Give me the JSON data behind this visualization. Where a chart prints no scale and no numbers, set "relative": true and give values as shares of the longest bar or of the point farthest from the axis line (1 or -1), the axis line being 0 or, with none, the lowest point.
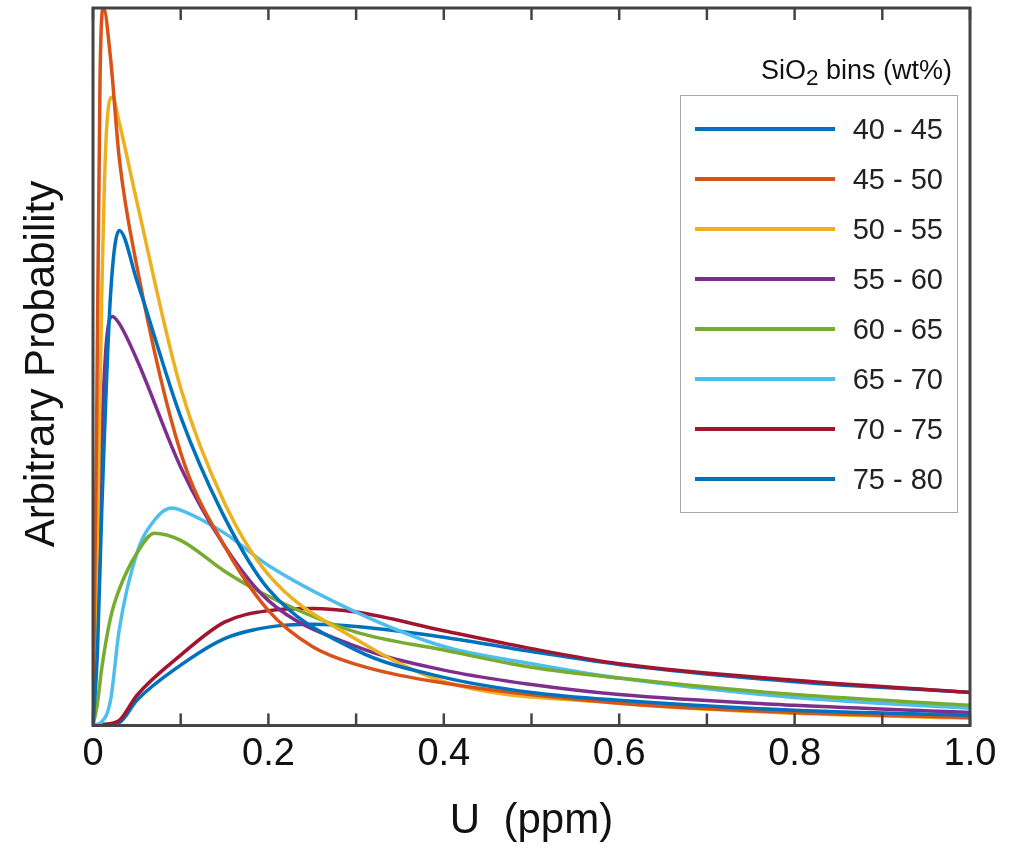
{
  "chart_data": {
    "type": "line",
    "xlabel": "U  (ppm)",
    "ylabel": "Arbitrary Probability",
    "legend_title": "SiO$_{2}$ bins (wt%)",
    "legend": "top right",
    "relative": true,
    "grid": false,
    "marker": "none",
    "line_style": "solid",
    "xlim": [
      0,
      1
    ],
    "xticks": [
      0,
      {
        "value": 0.1,
        "label": null
      },
      0.2,
      {
        "value": 0.3,
        "label": null
      },
      0.4,
      {
        "value": 0.5,
        "label": null
      },
      0.6,
      {
        "value": 0.7,
        "label": null
      },
      0.8,
      {
        "value": 0.9,
        "label": null
      },
      {
        "value": 1,
        "label": "1.0"
      }
    ],
    "series": [
      {
        "name": "40 - 45",
        "color": "#0072bd",
        "x": [
          0,
          0.005,
          0.01,
          0.02,
          0.03,
          0.05,
          0.1,
          0.15,
          0.2,
          0.3,
          0.4,
          0.5,
          0.6,
          0.8,
          1.0
        ],
        "values": [
          0,
          0.1,
          0.3,
          0.6,
          0.69,
          0.62,
          0.43,
          0.29,
          0.19,
          0.105,
          0.067,
          0.046,
          0.035,
          0.021,
          0.014
        ]
      },
      {
        "name": "45 - 50",
        "color": "#d95319",
        "x": [
          0,
          0.004,
          0.008,
          0.012,
          0.02,
          0.03,
          0.05,
          0.1,
          0.15,
          0.2,
          0.25,
          0.3,
          0.4,
          0.6,
          0.8,
          1.0
        ],
        "values": [
          0,
          0.4,
          0.9,
          1,
          0.93,
          0.79,
          0.64,
          0.38,
          0.25,
          0.16,
          0.11,
          0.085,
          0.059,
          0.031,
          0.018,
          0.011
        ]
      },
      {
        "name": "50 - 55",
        "color": "#edb120",
        "x": [
          0,
          0.005,
          0.01,
          0.015,
          0.022,
          0.03,
          0.05,
          0.1,
          0.15,
          0.2,
          0.3,
          0.4,
          0.6,
          0.8,
          1.0
        ],
        "values": [
          0,
          0.25,
          0.6,
          0.82,
          0.876,
          0.84,
          0.73,
          0.47,
          0.31,
          0.21,
          0.12,
          0.061,
          0.031,
          0.017,
          0.01
        ]
      },
      {
        "name": "55 - 60",
        "color": "#7e2f8e",
        "x": [
          0,
          0.005,
          0.01,
          0.015,
          0.022,
          0.03,
          0.05,
          0.1,
          0.15,
          0.2,
          0.3,
          0.4,
          0.5,
          0.6,
          0.8,
          1.0
        ],
        "values": [
          0,
          0.15,
          0.4,
          0.53,
          0.57,
          0.56,
          0.51,
          0.36,
          0.25,
          0.174,
          0.11,
          0.077,
          0.057,
          0.043,
          0.028,
          0.018
        ]
      },
      {
        "name": "60 - 65",
        "color": "#77ac30",
        "x": [
          0,
          0.005,
          0.01,
          0.02,
          0.03,
          0.05,
          0.07,
          0.1,
          0.15,
          0.2,
          0.3,
          0.4,
          0.5,
          0.6,
          0.8,
          1.0
        ],
        "values": [
          0,
          0.03,
          0.08,
          0.15,
          0.19,
          0.24,
          0.268,
          0.258,
          0.215,
          0.18,
          0.13,
          0.105,
          0.081,
          0.066,
          0.043,
          0.028
        ]
      },
      {
        "name": "65 - 70",
        "color": "#4dbeee",
        "x": [
          0,
          0.01,
          0.02,
          0.03,
          0.05,
          0.07,
          0.09,
          0.1,
          0.15,
          0.2,
          0.3,
          0.4,
          0.5,
          0.6,
          0.8,
          1.0
        ],
        "values": [
          0,
          0.005,
          0.035,
          0.134,
          0.24,
          0.286,
          0.303,
          0.3,
          0.268,
          0.223,
          0.158,
          0.11,
          0.086,
          0.066,
          0.039,
          0.024
        ]
      },
      {
        "name": "70 - 75",
        "color": "#a2142f",
        "x": [
          0,
          0.01,
          0.03,
          0.05,
          0.1,
          0.15,
          0.2,
          0.25,
          0.3,
          0.4,
          0.5,
          0.6,
          0.8,
          1.0
        ],
        "values": [
          0,
          0.001,
          0.007,
          0.042,
          0.098,
          0.144,
          0.16,
          0.163,
          0.158,
          0.132,
          0.107,
          0.086,
          0.063,
          0.046
        ]
      },
      {
        "name": "75 - 80",
        "color": "#0072bd",
        "x": [
          0,
          0.01,
          0.03,
          0.05,
          0.1,
          0.15,
          0.2,
          0.25,
          0.3,
          0.4,
          0.5,
          0.6,
          0.8,
          1.0
        ],
        "values": [
          0,
          0.001,
          0.004,
          0.035,
          0.084,
          0.121,
          0.137,
          0.141,
          0.138,
          0.123,
          0.103,
          0.085,
          0.061,
          0.046
        ]
      }
    ]
  }
}
